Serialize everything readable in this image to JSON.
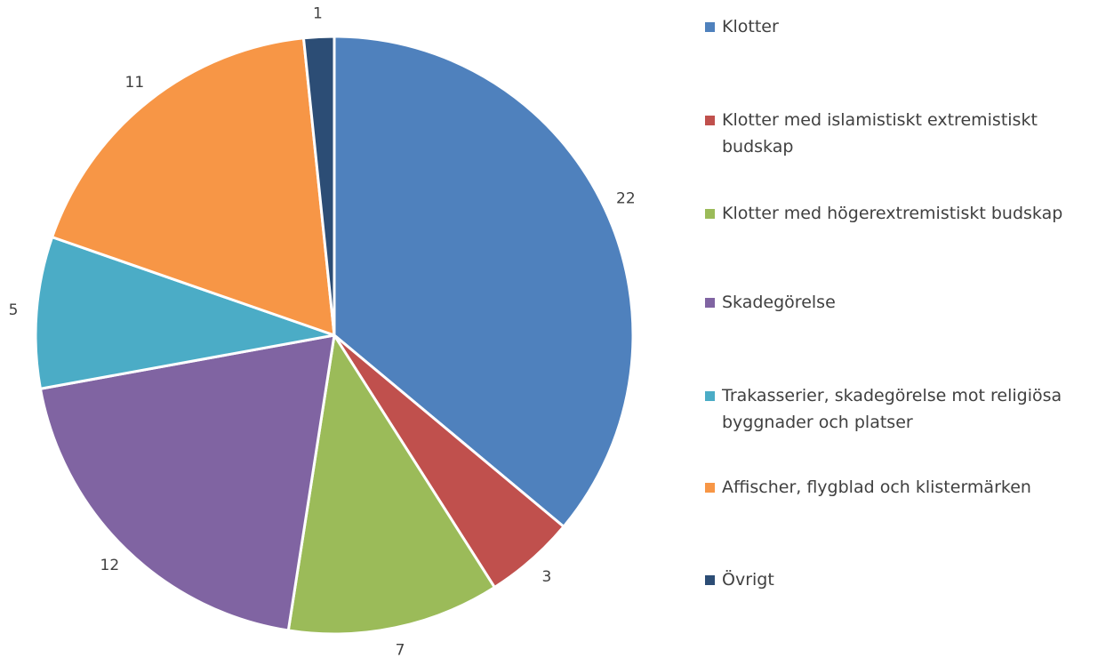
{
  "chart_data": {
    "type": "pie",
    "categories": [
      "Klotter",
      "Klotter med islamistiskt extremistiskt budskap",
      "Klotter med högerextremistiskt budskap",
      "Skadegörelse",
      "Trakasserier, skadegörelse mot religiösa byggnader och platser",
      "Affischer, flygblad och klistermärken",
      "Övrigt"
    ],
    "values": [
      22,
      3,
      7,
      12,
      5,
      11,
      1
    ],
    "colors": [
      "#4f81bd",
      "#c0504d",
      "#9bbb59",
      "#8064a2",
      "#4bacc6",
      "#f79646",
      "#2c4d75"
    ],
    "legend": "right"
  }
}
